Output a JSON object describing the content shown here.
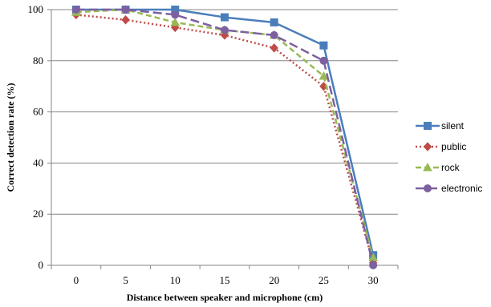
{
  "chart_data": {
    "type": "line",
    "title": "",
    "xlabel": "Distance between speaker and microphone (cm)",
    "ylabel": "Correct detection rate (%)",
    "x": [
      0,
      5,
      10,
      15,
      20,
      25,
      30
    ],
    "ylim": [
      0,
      100
    ],
    "yticks": [
      0,
      20,
      40,
      60,
      80,
      100
    ],
    "grid": "horizontal",
    "legend_position": "right",
    "series": [
      {
        "name": "silent",
        "values": [
          100,
          100,
          100,
          97,
          95,
          86,
          4
        ],
        "color": "#4a7ebb",
        "dash": "solid",
        "marker": "square"
      },
      {
        "name": "public",
        "values": [
          98,
          96,
          93,
          90,
          85,
          70,
          1
        ],
        "color": "#be4b48",
        "dash": "dotted",
        "marker": "diamond"
      },
      {
        "name": "rock",
        "values": [
          99,
          100,
          95,
          92,
          90,
          74,
          3
        ],
        "color": "#98b954",
        "dash": "dashed",
        "marker": "triangle"
      },
      {
        "name": "electronic",
        "values": [
          100,
          100,
          98,
          92,
          90,
          80,
          0
        ],
        "color": "#7d60a0",
        "dash": "longdash",
        "marker": "circle"
      }
    ]
  }
}
